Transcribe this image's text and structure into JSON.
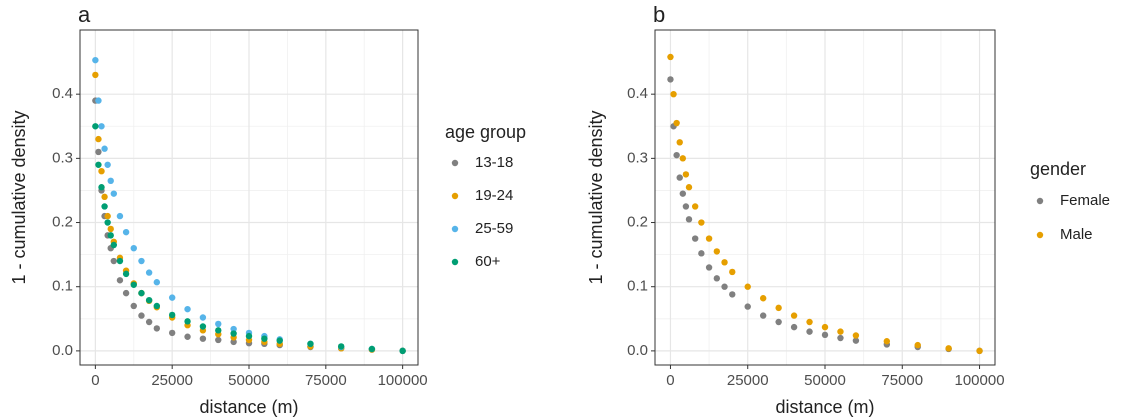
{
  "chart_data": [
    {
      "type": "scatter",
      "panel_label": "a",
      "xlabel": "distance (m)",
      "ylabel": "1 - cumulative density",
      "legend_title": "age group",
      "legend_position": "right",
      "grid": true,
      "xlim": [
        -5000,
        105000
      ],
      "ylim": [
        -0.022,
        0.5
      ],
      "xticks": [
        0,
        25000,
        50000,
        75000,
        100000
      ],
      "yticks": [
        {
          "value": 0,
          "label": "0.0"
        },
        0.1,
        0.2,
        0.3,
        0.4
      ],
      "x": [
        0,
        1000,
        2000,
        3000,
        4000,
        5000,
        6000,
        8000,
        10000,
        12500,
        15000,
        17500,
        20000,
        25000,
        30000,
        35000,
        40000,
        45000,
        50000,
        55000,
        60000,
        70000,
        80000,
        90000,
        100000
      ],
      "series": [
        {
          "name": "13-18",
          "color": "#808080",
          "values": [
            0.39,
            0.31,
            0.25,
            0.21,
            0.18,
            0.16,
            0.14,
            0.11,
            0.09,
            0.07,
            0.055,
            0.045,
            0.035,
            0.028,
            0.022,
            0.019,
            0.017,
            0.014,
            0.012,
            0.011,
            0.009,
            0.006,
            0.004,
            0.002,
            0.0
          ]
        },
        {
          "name": "19-24",
          "color": "#E69F00",
          "values": [
            0.43,
            0.33,
            0.28,
            0.24,
            0.21,
            0.19,
            0.17,
            0.145,
            0.125,
            0.105,
            0.09,
            0.078,
            0.068,
            0.052,
            0.04,
            0.032,
            0.026,
            0.021,
            0.017,
            0.014,
            0.011,
            0.007,
            0.004,
            0.002,
            0.0
          ]
        },
        {
          "name": "25-59",
          "color": "#56B4E9",
          "values": [
            0.453,
            0.39,
            0.35,
            0.315,
            0.29,
            0.265,
            0.245,
            0.21,
            0.185,
            0.16,
            0.14,
            0.122,
            0.107,
            0.083,
            0.065,
            0.052,
            0.042,
            0.034,
            0.028,
            0.023,
            0.018,
            0.011,
            0.006,
            0.003,
            0.0
          ]
        },
        {
          "name": "60+",
          "color": "#009E73",
          "values": [
            0.35,
            0.29,
            0.255,
            0.225,
            0.2,
            0.18,
            0.165,
            0.14,
            0.12,
            0.103,
            0.09,
            0.079,
            0.07,
            0.056,
            0.046,
            0.038,
            0.032,
            0.027,
            0.023,
            0.019,
            0.016,
            0.011,
            0.007,
            0.003,
            0.0
          ]
        }
      ]
    },
    {
      "type": "scatter",
      "panel_label": "b",
      "xlabel": "distance (m)",
      "ylabel": "1 - cumulative density",
      "legend_title": "gender",
      "legend_position": "right",
      "grid": true,
      "xlim": [
        -5000,
        105000
      ],
      "ylim": [
        -0.022,
        0.5
      ],
      "xticks": [
        0,
        25000,
        50000,
        75000,
        100000
      ],
      "yticks": [
        {
          "value": 0,
          "label": "0.0"
        },
        0.1,
        0.2,
        0.3,
        0.4
      ],
      "x": [
        0,
        1000,
        2000,
        3000,
        4000,
        5000,
        6000,
        8000,
        10000,
        12500,
        15000,
        17500,
        20000,
        25000,
        30000,
        35000,
        40000,
        45000,
        50000,
        55000,
        60000,
        70000,
        80000,
        90000,
        100000
      ],
      "series": [
        {
          "name": "Female",
          "color": "#808080",
          "values": [
            0.423,
            0.35,
            0.305,
            0.27,
            0.245,
            0.225,
            0.205,
            0.175,
            0.152,
            0.13,
            0.113,
            0.1,
            0.088,
            0.069,
            0.055,
            0.045,
            0.037,
            0.03,
            0.025,
            0.02,
            0.016,
            0.01,
            0.006,
            0.003,
            0.0
          ]
        },
        {
          "name": "Male",
          "color": "#E69F00",
          "values": [
            0.458,
            0.4,
            0.355,
            0.325,
            0.3,
            0.275,
            0.255,
            0.225,
            0.2,
            0.175,
            0.155,
            0.138,
            0.123,
            0.1,
            0.082,
            0.067,
            0.055,
            0.045,
            0.037,
            0.03,
            0.024,
            0.015,
            0.009,
            0.004,
            0.0
          ]
        }
      ]
    }
  ]
}
